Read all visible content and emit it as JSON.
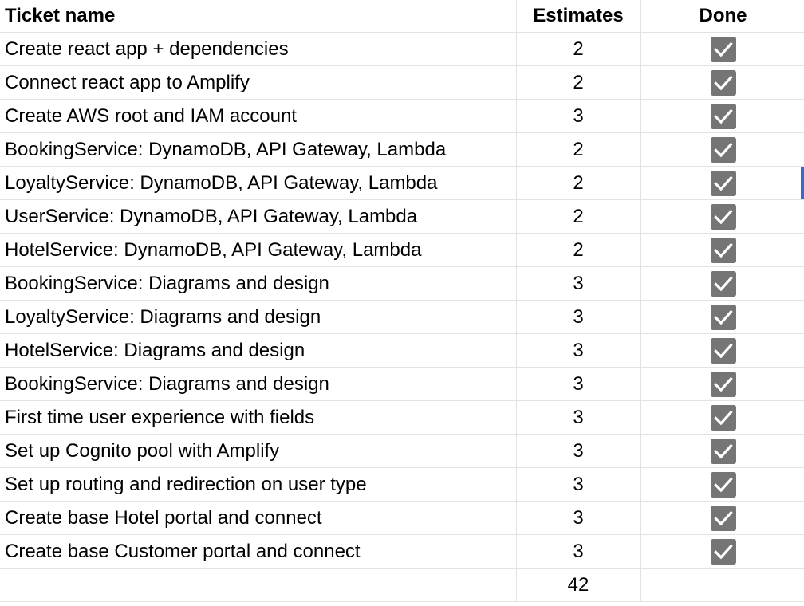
{
  "headers": {
    "ticket_name": "Ticket name",
    "estimates": "Estimates",
    "done": "Done"
  },
  "accent_color": "#3b66d8",
  "checkbox_color": "#757575",
  "rows": [
    {
      "name": "Create react app + dependencies",
      "estimate": "2",
      "done": true
    },
    {
      "name": "Connect react app to Amplify",
      "estimate": "2",
      "done": true
    },
    {
      "name": "Create AWS root and IAM account",
      "estimate": "3",
      "done": true
    },
    {
      "name": "BookingService: DynamoDB, API Gateway, Lambda",
      "estimate": "2",
      "done": true
    },
    {
      "name": "LoyaltyService: DynamoDB, API Gateway, Lambda",
      "estimate": "2",
      "done": true
    },
    {
      "name": "UserService: DynamoDB, API Gateway, Lambda",
      "estimate": "2",
      "done": true
    },
    {
      "name": "HotelService: DynamoDB, API Gateway, Lambda",
      "estimate": "2",
      "done": true
    },
    {
      "name": "BookingService: Diagrams and design",
      "estimate": "3",
      "done": true
    },
    {
      "name": "LoyaltyService: Diagrams and design",
      "estimate": "3",
      "done": true
    },
    {
      "name": "HotelService: Diagrams and design",
      "estimate": "3",
      "done": true
    },
    {
      "name": "BookingService: Diagrams and design",
      "estimate": "3",
      "done": true
    },
    {
      "name": "First time user experience with fields",
      "estimate": "3",
      "done": true
    },
    {
      "name": "Set up Cognito pool with Amplify",
      "estimate": "3",
      "done": true
    },
    {
      "name": "Set up routing and redirection on user type",
      "estimate": "3",
      "done": true
    },
    {
      "name": "Create base Hotel portal and connect",
      "estimate": "3",
      "done": true
    },
    {
      "name": "Create base Customer portal and connect",
      "estimate": "3",
      "done": true
    }
  ],
  "total": {
    "label": "",
    "estimate": "42"
  },
  "icons": {
    "checkbox": "checkbox-checked-icon",
    "checkmark": "checkmark-icon"
  }
}
